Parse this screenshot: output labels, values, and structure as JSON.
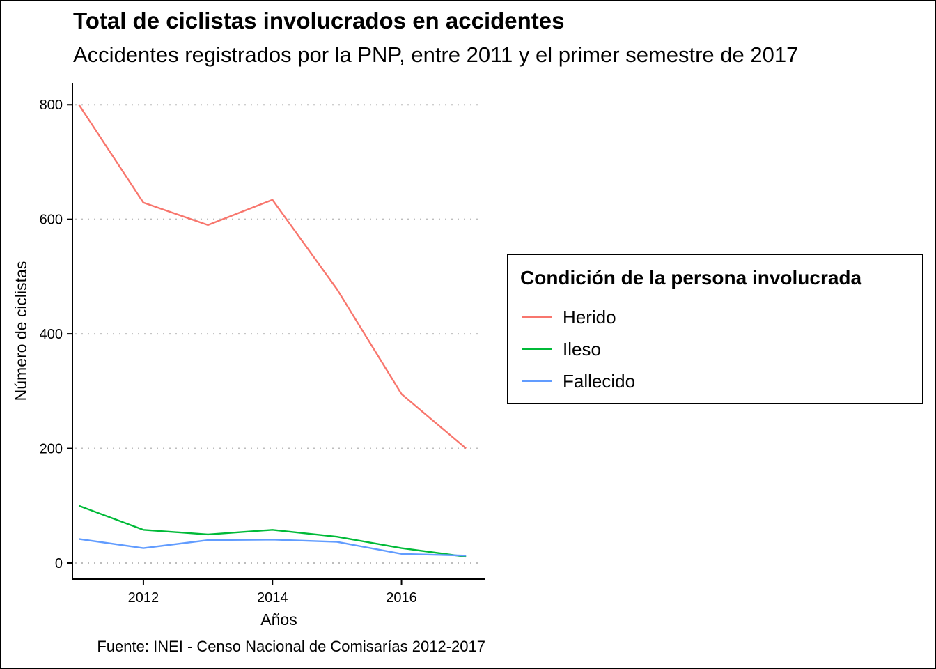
{
  "chart_data": {
    "type": "line",
    "title": "Total de ciclistas involucrados en accidentes",
    "subtitle": "Accidentes registrados por la PNP, entre 2011 y el primer semestre de 2017",
    "caption": "Fuente: INEI - Censo Nacional de Comisarías 2012-2017",
    "xlabel": "Años",
    "ylabel": "Número de ciclistas",
    "x": [
      2011,
      2012,
      2013,
      2014,
      2015,
      2016,
      2017
    ],
    "xlim": [
      2010.9,
      2017.3
    ],
    "ylim": [
      -28,
      838
    ],
    "xticks": [
      2012,
      2014,
      2016
    ],
    "yticks": [
      0,
      200,
      400,
      600,
      800
    ],
    "grid": "horizontal-dotted",
    "legend_position": "right",
    "legend_title": "Condición de la persona involucrada",
    "series": [
      {
        "name": "Herido",
        "color": "#F8766D",
        "values": [
          800,
          629,
          590,
          634,
          478,
          295,
          200
        ]
      },
      {
        "name": "Ileso",
        "color": "#00BA38",
        "values": [
          100,
          58,
          50,
          58,
          46,
          26,
          11
        ]
      },
      {
        "name": "Fallecido",
        "color": "#619CFF",
        "values": [
          42,
          26,
          40,
          41,
          37,
          16,
          13
        ]
      }
    ]
  }
}
